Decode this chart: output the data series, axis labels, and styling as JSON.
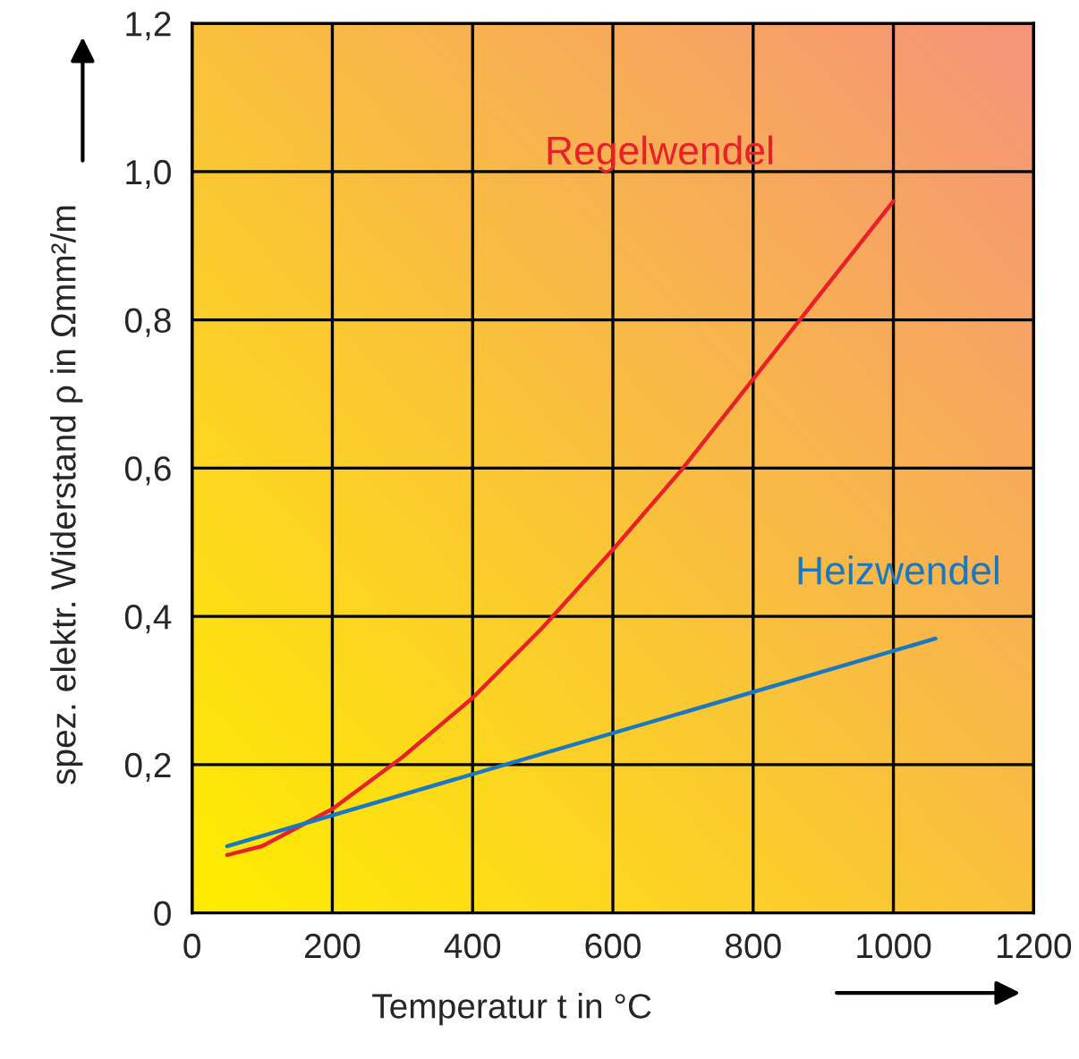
{
  "chart_data": {
    "type": "line",
    "xlabel": "Temperatur t in °C",
    "ylabel": "spez. elektr. Widerstand ρ in Ωmm²/m",
    "xlim": [
      0,
      1200
    ],
    "xticks": [
      0,
      200,
      400,
      600,
      800,
      1000,
      1200
    ],
    "ylim": [
      0,
      1.2
    ],
    "yticks": [
      {
        "value": 0,
        "label": "0"
      },
      {
        "value": 0.2,
        "label": "0,2"
      },
      {
        "value": 0.4,
        "label": "0,4"
      },
      {
        "value": 0.6,
        "label": "0,6"
      },
      {
        "value": 0.8,
        "label": "0,8"
      },
      {
        "value": 1.0,
        "label": "1,0"
      },
      {
        "value": 1.2,
        "label": "1,2"
      }
    ],
    "grid": true,
    "legend": false,
    "marker": "none",
    "line_style": "solid",
    "series": [
      {
        "name": "Regelwendel",
        "color": "#e8202a",
        "x": [
          50,
          100,
          200,
          300,
          400,
          500,
          600,
          700,
          800,
          900,
          1000
        ],
        "values": [
          0.078,
          0.09,
          0.14,
          0.21,
          0.29,
          0.385,
          0.49,
          0.6,
          0.72,
          0.84,
          0.96
        ]
      },
      {
        "name": "Heizwendel",
        "color": "#1a78c2",
        "x": [
          50,
          1060
        ],
        "values": [
          0.09,
          0.37
        ]
      }
    ]
  }
}
